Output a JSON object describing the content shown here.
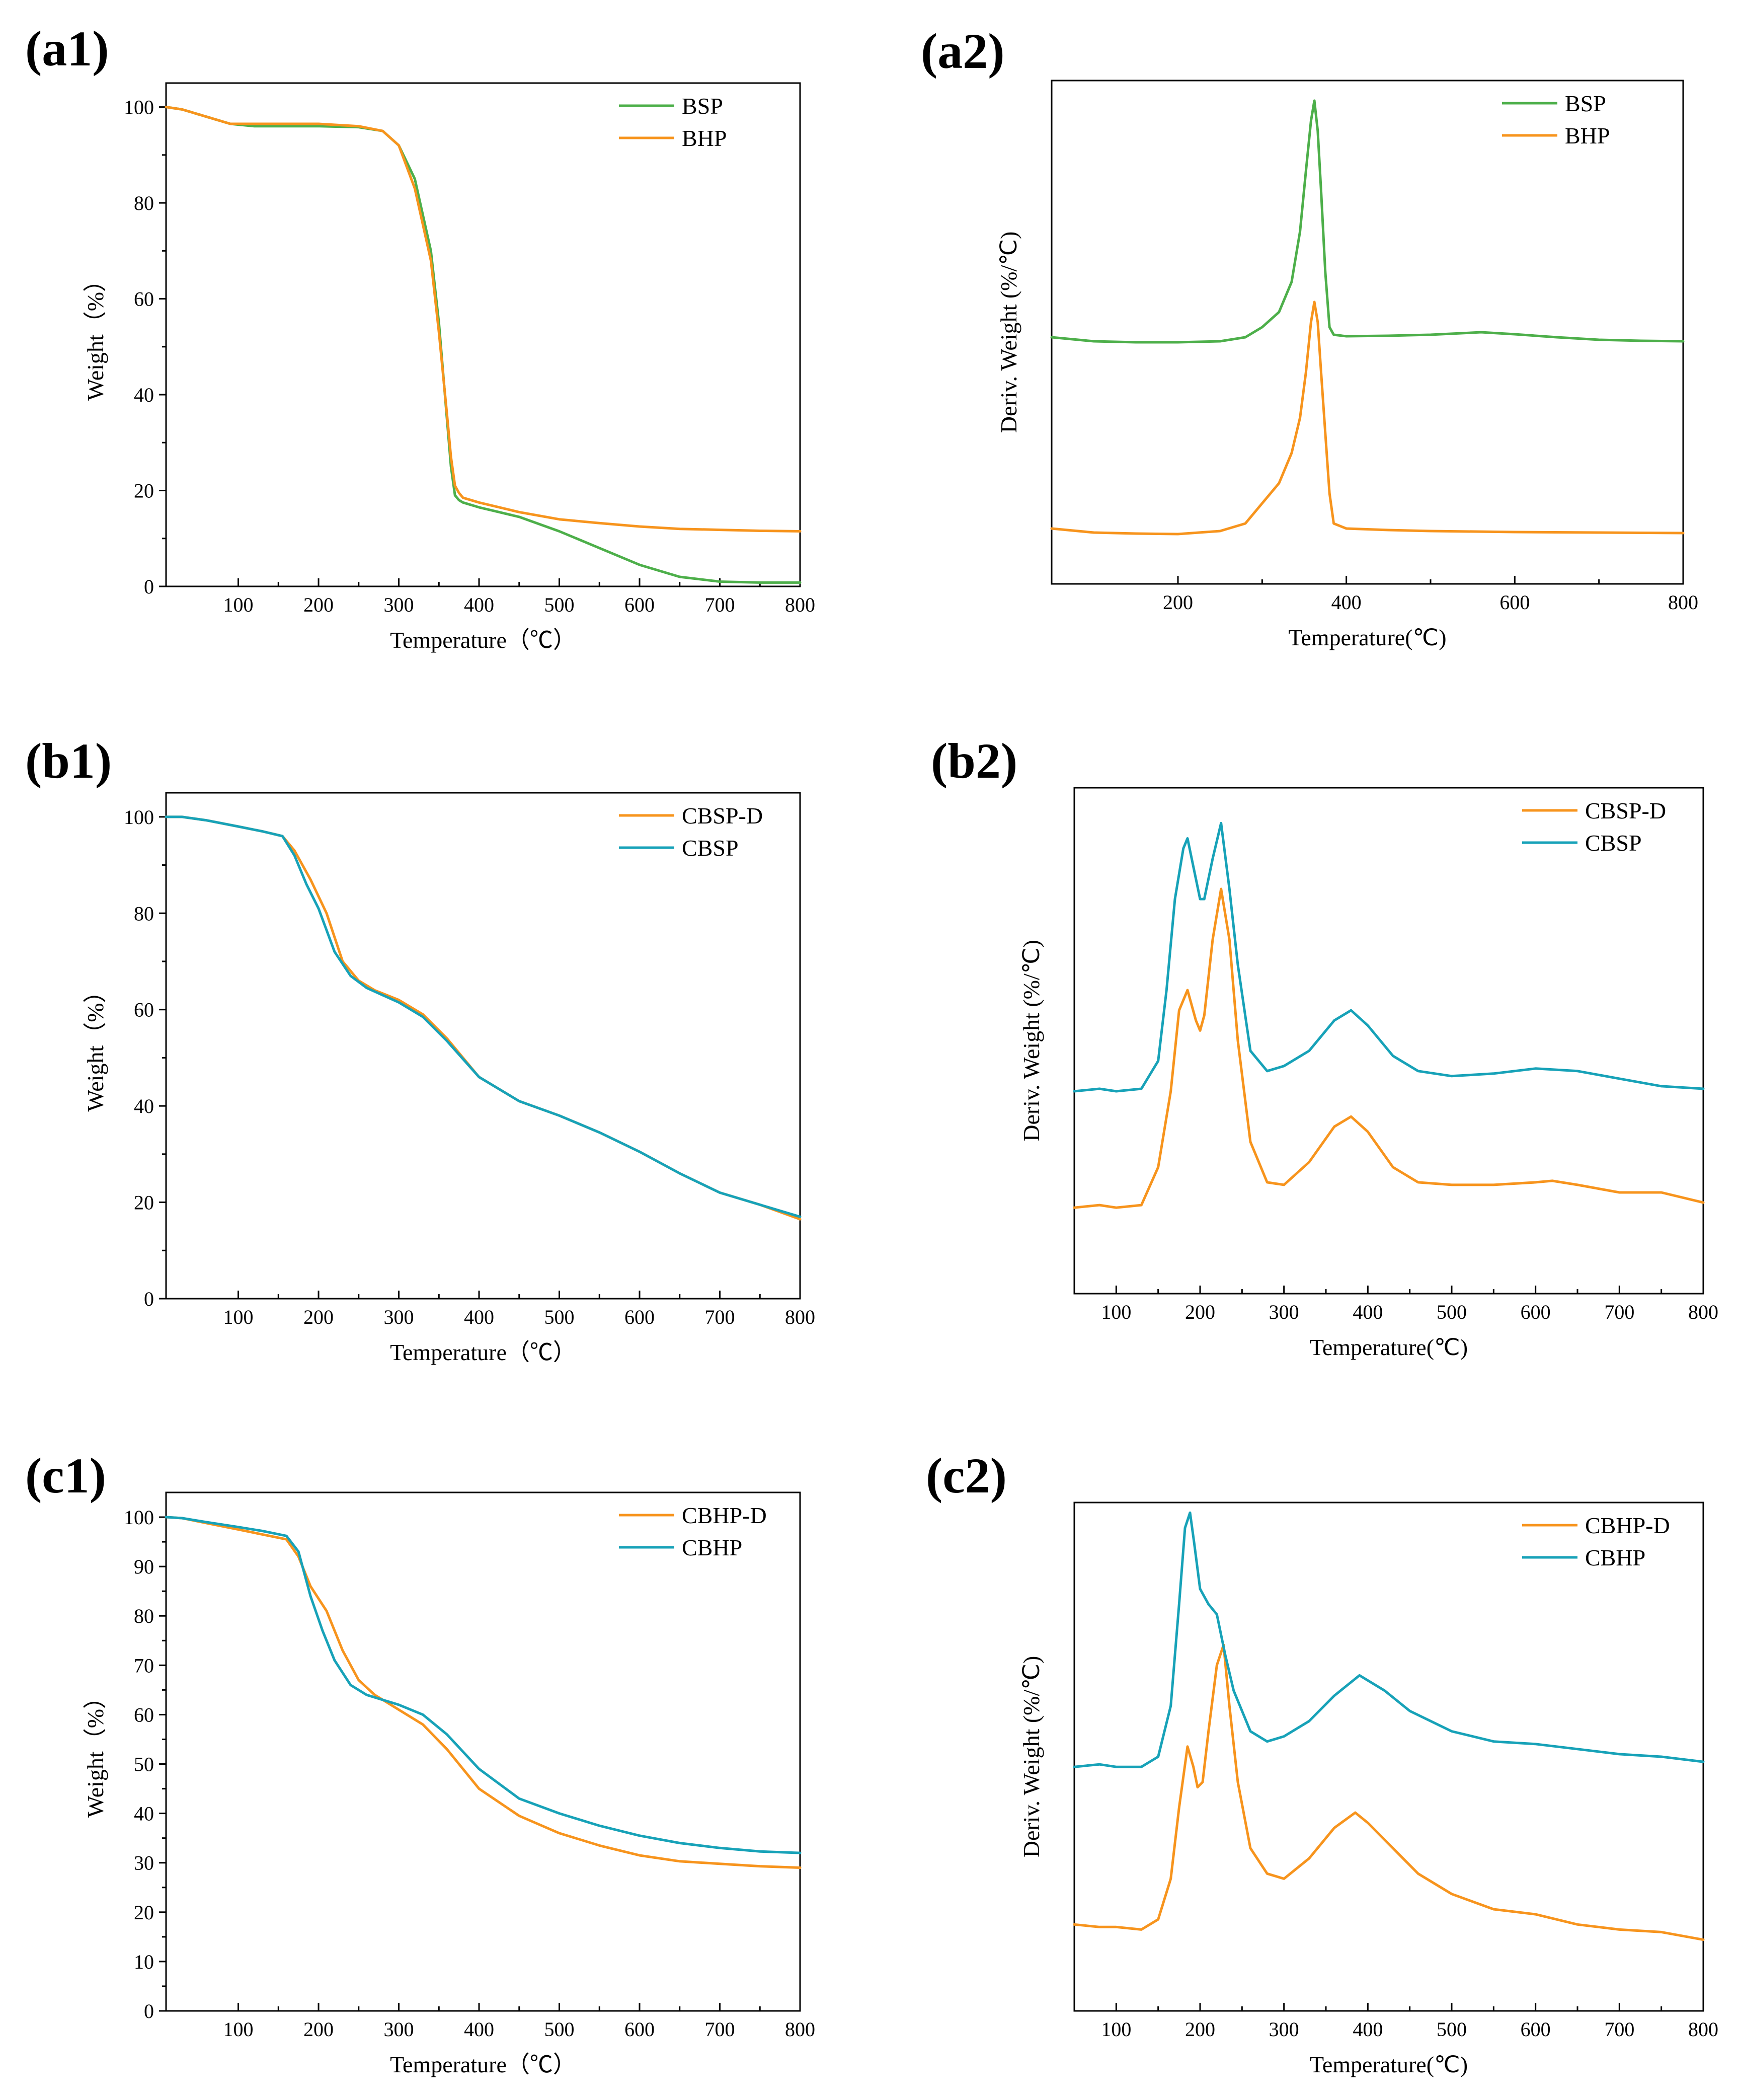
{
  "colors": {
    "green": "#4DAF4A",
    "orange": "#F7941D",
    "teal": "#17A2B8"
  },
  "chart_data": [
    {
      "id": "a1",
      "label": "(a1)",
      "type": "line",
      "xlabel": "Temperature（℃）",
      "ylabel": "Weight（%）",
      "xlim": [
        10,
        800
      ],
      "ylim": [
        0,
        105
      ],
      "xticks": [
        100,
        200,
        300,
        400,
        500,
        600,
        700,
        800
      ],
      "yticks": [
        0,
        20,
        40,
        60,
        80,
        100
      ],
      "legend_position": "top-right",
      "series": [
        {
          "name": "BSP",
          "color": "#4DAF4A",
          "x": [
            10,
            30,
            60,
            90,
            120,
            200,
            250,
            280,
            300,
            320,
            340,
            350,
            360,
            365,
            370,
            375,
            380,
            400,
            450,
            500,
            550,
            600,
            650,
            700,
            750,
            800
          ],
          "y": [
            100,
            99.5,
            98,
            96.5,
            96,
            96,
            95.8,
            95,
            92,
            85,
            70,
            55,
            35,
            25,
            19,
            18,
            17.5,
            16.5,
            14.5,
            11.5,
            8,
            4.5,
            2,
            1,
            0.8,
            0.8
          ]
        },
        {
          "name": "BHP",
          "color": "#F7941D",
          "x": [
            10,
            30,
            60,
            90,
            120,
            200,
            250,
            280,
            300,
            320,
            340,
            350,
            360,
            365,
            370,
            375,
            380,
            400,
            450,
            500,
            550,
            600,
            650,
            700,
            750,
            800
          ],
          "y": [
            100,
            99.5,
            98,
            96.5,
            96.5,
            96.5,
            96,
            95,
            92,
            83,
            68,
            53,
            36,
            27,
            21,
            19.5,
            18.5,
            17.5,
            15.5,
            14,
            13.2,
            12.5,
            12,
            11.8,
            11.6,
            11.5
          ]
        }
      ]
    },
    {
      "id": "a2",
      "label": "(a2)",
      "type": "line",
      "xlabel": "Temperature(℃)",
      "ylabel": "Deriv. Weight (%/℃)",
      "xlim": [
        50,
        800
      ],
      "ylim": [
        0,
        100
      ],
      "xticks": [
        200,
        400,
        600,
        800
      ],
      "yticks": [],
      "legend_position": "top-right",
      "series": [
        {
          "name": "BSP",
          "color": "#4DAF4A",
          "x": [
            50,
            100,
            150,
            200,
            250,
            280,
            300,
            320,
            335,
            345,
            352,
            358,
            362,
            366,
            370,
            375,
            380,
            385,
            400,
            450,
            500,
            560,
            600,
            650,
            700,
            750,
            800
          ],
          "y": [
            49,
            48.2,
            48,
            48,
            48.2,
            49,
            51,
            54,
            60,
            70,
            82,
            92,
            96,
            90,
            78,
            62,
            51,
            49.5,
            49.2,
            49.3,
            49.5,
            50,
            49.6,
            49,
            48.5,
            48.3,
            48.2
          ]
        },
        {
          "name": "BHP",
          "color": "#F7941D",
          "x": [
            50,
            100,
            150,
            200,
            250,
            280,
            300,
            320,
            335,
            345,
            352,
            358,
            362,
            366,
            370,
            375,
            380,
            385,
            400,
            450,
            500,
            600,
            700,
            800
          ],
          "y": [
            11,
            10.2,
            10,
            9.9,
            10.5,
            12,
            16,
            20,
            26,
            33,
            42,
            52,
            56,
            52,
            42,
            30,
            18,
            12,
            11,
            10.7,
            10.5,
            10.3,
            10.2,
            10.1
          ]
        }
      ]
    },
    {
      "id": "b1",
      "label": "(b1)",
      "type": "line",
      "xlabel": "Temperature（℃）",
      "ylabel": "Weight（%）",
      "xlim": [
        10,
        800
      ],
      "ylim": [
        0,
        105
      ],
      "xticks": [
        100,
        200,
        300,
        400,
        500,
        600,
        700,
        800
      ],
      "yticks": [
        0,
        20,
        40,
        60,
        80,
        100
      ],
      "legend_position": "top-right",
      "series": [
        {
          "name": "CBSP-D",
          "color": "#F7941D",
          "x": [
            10,
            30,
            60,
            100,
            130,
            155,
            170,
            190,
            210,
            230,
            250,
            270,
            300,
            330,
            360,
            400,
            450,
            500,
            550,
            600,
            650,
            700,
            750,
            800
          ],
          "y": [
            100,
            100,
            99.3,
            98,
            97,
            96,
            93,
            87,
            80,
            70,
            66,
            64,
            62,
            59,
            54,
            46,
            41,
            38,
            34.5,
            30.5,
            26,
            22,
            19.5,
            16.5
          ]
        },
        {
          "name": "CBSP",
          "color": "#17A2B8",
          "x": [
            10,
            30,
            60,
            100,
            130,
            155,
            170,
            185,
            200,
            220,
            240,
            260,
            300,
            330,
            360,
            400,
            450,
            500,
            550,
            600,
            650,
            700,
            750,
            800
          ],
          "y": [
            100,
            100,
            99.3,
            98,
            97,
            96,
            92,
            86,
            81,
            72,
            67,
            64.5,
            61.5,
            58.5,
            53.5,
            46,
            41,
            38,
            34.5,
            30.5,
            26,
            22,
            19.5,
            17
          ]
        }
      ]
    },
    {
      "id": "b2",
      "label": "(b2)",
      "type": "line",
      "xlabel": "Temperature(℃)",
      "ylabel": "Deriv. Weight (%/℃)",
      "xlim": [
        50,
        800
      ],
      "ylim": [
        0,
        100
      ],
      "xticks": [
        100,
        200,
        300,
        400,
        500,
        600,
        700,
        800
      ],
      "yticks": [],
      "legend_position": "top-right",
      "series": [
        {
          "name": "CBSP-D",
          "color": "#F7941D",
          "x": [
            50,
            80,
            100,
            130,
            150,
            165,
            175,
            185,
            195,
            200,
            205,
            215,
            225,
            235,
            245,
            260,
            280,
            300,
            330,
            360,
            380,
            400,
            430,
            460,
            500,
            550,
            600,
            620,
            650,
            700,
            750,
            800
          ],
          "y": [
            17,
            17.5,
            17,
            17.5,
            25,
            40,
            56,
            60,
            54,
            52,
            55,
            70,
            80,
            70,
            50,
            30,
            22,
            21.5,
            26,
            33,
            35,
            32,
            25,
            22,
            21.5,
            21.5,
            22,
            22.3,
            21.5,
            20,
            20,
            18
          ]
        },
        {
          "name": "CBSP",
          "color": "#17A2B8",
          "x": [
            50,
            80,
            100,
            130,
            150,
            160,
            170,
            180,
            185,
            190,
            200,
            205,
            215,
            225,
            235,
            245,
            260,
            280,
            300,
            330,
            360,
            380,
            400,
            430,
            460,
            500,
            550,
            600,
            650,
            700,
            750,
            800
          ],
          "y": [
            40,
            40.5,
            40,
            40.5,
            46,
            60,
            78,
            88,
            90,
            86,
            78,
            78,
            86,
            93,
            80,
            65,
            48,
            44,
            45,
            48,
            54,
            56,
            53,
            47,
            44,
            43,
            43.5,
            44.5,
            44,
            42.5,
            41,
            40.5
          ]
        }
      ]
    },
    {
      "id": "c1",
      "label": "(c1)",
      "type": "line",
      "xlabel": "Temperature（℃）",
      "ylabel": "Weight（%）",
      "xlim": [
        10,
        800
      ],
      "ylim": [
        0,
        105
      ],
      "xticks": [
        100,
        200,
        300,
        400,
        500,
        600,
        700,
        800
      ],
      "yticks": [
        0,
        10,
        20,
        30,
        40,
        50,
        60,
        70,
        80,
        90,
        100
      ],
      "legend_position": "top-right",
      "series": [
        {
          "name": "CBHP-D",
          "color": "#F7941D",
          "x": [
            10,
            30,
            60,
            100,
            130,
            160,
            175,
            190,
            210,
            230,
            250,
            270,
            300,
            330,
            360,
            400,
            450,
            500,
            550,
            600,
            650,
            700,
            750,
            800
          ],
          "y": [
            100,
            99.8,
            98.8,
            97.5,
            96.5,
            95.5,
            92,
            86,
            81,
            73,
            67,
            64,
            61,
            58,
            53,
            45,
            39.5,
            36,
            33.5,
            31.5,
            30.3,
            29.8,
            29.3,
            29
          ]
        },
        {
          "name": "CBHP",
          "color": "#17A2B8",
          "x": [
            10,
            30,
            60,
            100,
            130,
            160,
            175,
            190,
            205,
            220,
            240,
            260,
            300,
            330,
            360,
            400,
            450,
            500,
            550,
            600,
            650,
            700,
            750,
            800
          ],
          "y": [
            100,
            99.8,
            99,
            98,
            97.2,
            96.2,
            93,
            84,
            77,
            71,
            66,
            64,
            62,
            60,
            56,
            49,
            43,
            40,
            37.5,
            35.5,
            34,
            33,
            32.3,
            32
          ]
        }
      ]
    },
    {
      "id": "c2",
      "label": "(c2)",
      "type": "line",
      "xlabel": "Temperature(℃)",
      "ylabel": "Deriv. Weight (%/℃)",
      "xlim": [
        50,
        800
      ],
      "ylim": [
        0,
        100
      ],
      "xticks": [
        100,
        200,
        300,
        400,
        500,
        600,
        700,
        800
      ],
      "yticks": [],
      "legend_position": "top-right",
      "series": [
        {
          "name": "CBHP-D",
          "color": "#F7941D",
          "x": [
            50,
            80,
            100,
            130,
            150,
            165,
            175,
            185,
            192,
            197,
            203,
            210,
            220,
            228,
            235,
            245,
            260,
            280,
            300,
            330,
            360,
            385,
            400,
            430,
            460,
            500,
            550,
            600,
            650,
            700,
            750,
            800
          ],
          "y": [
            17,
            16.5,
            16.5,
            16,
            18,
            26,
            40,
            52,
            48,
            44,
            45,
            55,
            68,
            72,
            60,
            45,
            32,
            27,
            26,
            30,
            36,
            39,
            37,
            32,
            27,
            23,
            20,
            19,
            17,
            16,
            15.5,
            14
          ]
        },
        {
          "name": "CBHP",
          "color": "#17A2B8",
          "x": [
            50,
            80,
            100,
            130,
            150,
            165,
            175,
            182,
            188,
            193,
            200,
            210,
            220,
            230,
            240,
            260,
            280,
            300,
            330,
            360,
            390,
            420,
            450,
            500,
            550,
            600,
            650,
            700,
            750,
            800
          ],
          "y": [
            48,
            48.5,
            48,
            48,
            50,
            60,
            80,
            95,
            98,
            92,
            83,
            80,
            78,
            70,
            63,
            55,
            53,
            54,
            57,
            62,
            66,
            63,
            59,
            55,
            53,
            52.5,
            51.5,
            50.5,
            50,
            49
          ]
        }
      ]
    }
  ]
}
